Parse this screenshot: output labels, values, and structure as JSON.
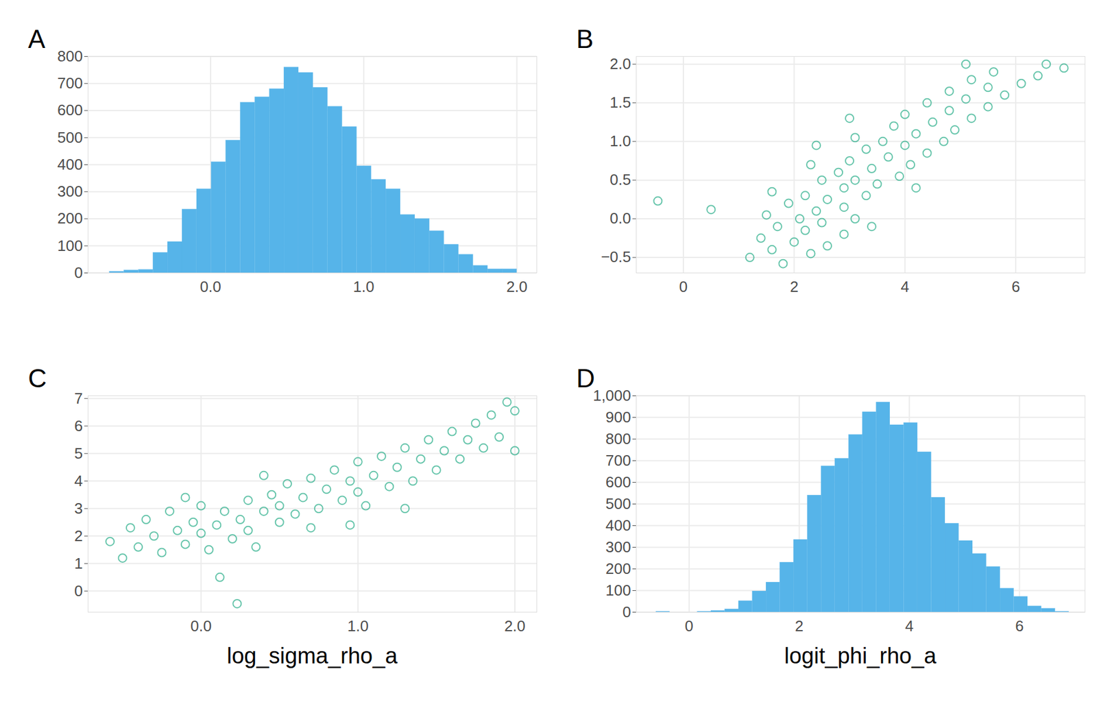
{
  "chart_data": [
    {
      "type": "histogram",
      "title": "A",
      "color": "#56B4E9",
      "grid": true,
      "tick_labels": "x",
      "xlim": [
        -0.8,
        2.13
      ],
      "xticks": [
        0,
        1,
        2
      ],
      "ylim": [
        0,
        800
      ],
      "yticks": [
        0,
        100,
        200,
        300,
        400,
        500,
        600,
        700,
        800
      ],
      "bins": [
        -0.66,
        -0.565,
        -0.47,
        -0.375,
        -0.28,
        -0.185,
        -0.09,
        0.005,
        0.1,
        0.195,
        0.29,
        0.385,
        0.48,
        0.575,
        0.67,
        0.765,
        0.86,
        0.955,
        1.05,
        1.145,
        1.24,
        1.335,
        1.43,
        1.525,
        1.62,
        1.715,
        1.81,
        1.905,
        2.0
      ],
      "values": [
        5,
        10,
        12,
        75,
        115,
        235,
        310,
        410,
        490,
        630,
        650,
        680,
        760,
        740,
        685,
        615,
        540,
        395,
        345,
        310,
        215,
        200,
        155,
        105,
        68,
        27,
        14,
        14
      ]
    },
    {
      "type": "scatter",
      "title": "B",
      "color": "#009E73",
      "marker": "open_circle",
      "grid": true,
      "tick_labels": "x",
      "xlim": [
        -0.85,
        7.25
      ],
      "xticks": [
        0,
        2,
        4,
        6
      ],
      "ylim": [
        -0.7,
        2.1
      ],
      "yticks": [
        -0.5,
        0,
        0.5,
        1,
        1.5,
        2
      ],
      "x": [
        1.8,
        1.2,
        2.3,
        1.6,
        2.6,
        2.0,
        1.4,
        2.9,
        2.2,
        1.7,
        2.5,
        2.1,
        3.1,
        1.5,
        2.4,
        0.5,
        2.9,
        1.9,
        -0.46,
        2.6,
        3.3,
        2.2,
        1.6,
        2.9,
        3.5,
        2.5,
        3.1,
        3.9,
        2.8,
        3.4,
        2.3,
        4.1,
        3.0,
        3.7,
        4.4,
        3.3,
        4.0,
        3.6,
        4.7,
        3.1,
        4.2,
        4.9,
        3.8,
        4.5,
        5.2,
        4.0,
        4.8,
        5.5,
        4.4,
        5.1,
        5.8,
        4.8,
        5.5,
        6.1,
        5.2,
        6.4,
        5.6,
        6.87,
        6.55,
        5.1,
        3.0,
        2.4,
        3.4,
        4.2
      ],
      "y": [
        -0.58,
        -0.5,
        -0.45,
        -0.4,
        -0.35,
        -0.3,
        -0.25,
        -0.2,
        -0.15,
        -0.1,
        -0.05,
        0.0,
        0.0,
        0.05,
        0.1,
        0.12,
        0.15,
        0.2,
        0.23,
        0.25,
        0.3,
        0.3,
        0.35,
        0.4,
        0.45,
        0.5,
        0.5,
        0.55,
        0.6,
        0.65,
        0.7,
        0.7,
        0.75,
        0.8,
        0.85,
        0.9,
        0.95,
        1.0,
        1.0,
        1.05,
        1.1,
        1.15,
        1.2,
        1.25,
        1.3,
        1.35,
        1.4,
        1.45,
        1.5,
        1.55,
        1.6,
        1.65,
        1.7,
        1.75,
        1.8,
        1.85,
        1.9,
        1.95,
        2.0,
        2.0,
        1.3,
        0.95,
        -0.1,
        0.4
      ]
    },
    {
      "type": "scatter",
      "title": "C",
      "xlabel": "log_sigma_rho_a",
      "color": "#009E73",
      "marker": "open_circle",
      "grid": true,
      "tick_labels": "x",
      "xlim": [
        -0.72,
        2.14
      ],
      "xticks": [
        0,
        1,
        2
      ],
      "ylim": [
        -0.77,
        7.1
      ],
      "yticks": [
        0,
        1,
        2,
        3,
        4,
        5,
        6,
        7
      ],
      "x": [
        -0.58,
        -0.5,
        -0.45,
        -0.4,
        -0.35,
        -0.3,
        -0.25,
        -0.2,
        -0.15,
        -0.1,
        -0.05,
        0.0,
        0.0,
        0.05,
        0.1,
        0.12,
        0.15,
        0.2,
        0.23,
        0.25,
        0.3,
        0.3,
        0.35,
        0.4,
        0.45,
        0.5,
        0.5,
        0.55,
        0.6,
        0.65,
        0.7,
        0.7,
        0.75,
        0.8,
        0.85,
        0.9,
        0.95,
        1.0,
        1.0,
        1.05,
        1.1,
        1.15,
        1.2,
        1.25,
        1.3,
        1.35,
        1.4,
        1.45,
        1.5,
        1.55,
        1.6,
        1.65,
        1.7,
        1.75,
        1.8,
        1.85,
        1.9,
        1.95,
        2.0,
        2.0,
        1.3,
        0.95,
        -0.1,
        0.4
      ],
      "y": [
        1.8,
        1.2,
        2.3,
        1.6,
        2.6,
        2.0,
        1.4,
        2.9,
        2.2,
        1.7,
        2.5,
        2.1,
        3.1,
        1.5,
        2.4,
        0.5,
        2.9,
        1.9,
        -0.46,
        2.6,
        3.3,
        2.2,
        1.6,
        2.9,
        3.5,
        2.5,
        3.1,
        3.9,
        2.8,
        3.4,
        2.3,
        4.1,
        3.0,
        3.7,
        4.4,
        3.3,
        4.0,
        3.6,
        4.7,
        3.1,
        4.2,
        4.9,
        3.8,
        4.5,
        5.2,
        4.0,
        4.8,
        5.5,
        4.4,
        5.1,
        5.8,
        4.8,
        5.5,
        6.1,
        5.2,
        6.4,
        5.6,
        6.87,
        6.55,
        5.1,
        3.0,
        2.4,
        3.4,
        4.2
      ]
    },
    {
      "type": "histogram",
      "title": "D",
      "xlabel": "logit_phi_rho_a",
      "color": "#56B4E9",
      "grid": true,
      "tick_labels": "x",
      "xlim": [
        -0.96,
        7.19
      ],
      "xticks": [
        0,
        2,
        4,
        6
      ],
      "ylim": [
        0,
        1000
      ],
      "yticks": [
        0,
        100,
        200,
        300,
        400,
        500,
        600,
        700,
        800,
        900,
        1000
      ],
      "bins": [
        -0.6,
        -0.35,
        -0.1,
        0.15,
        0.4,
        0.65,
        0.9,
        1.15,
        1.4,
        1.65,
        1.9,
        2.15,
        2.4,
        2.65,
        2.9,
        3.15,
        3.4,
        3.65,
        3.9,
        4.15,
        4.4,
        4.65,
        4.9,
        5.15,
        5.4,
        5.65,
        5.9,
        6.15,
        6.4,
        6.65,
        6.9
      ],
      "values": [
        3,
        0,
        0,
        3,
        7,
        14,
        52,
        97,
        138,
        230,
        335,
        540,
        675,
        710,
        820,
        925,
        970,
        865,
        875,
        740,
        530,
        410,
        330,
        270,
        210,
        110,
        72,
        28,
        17,
        3
      ]
    }
  ]
}
